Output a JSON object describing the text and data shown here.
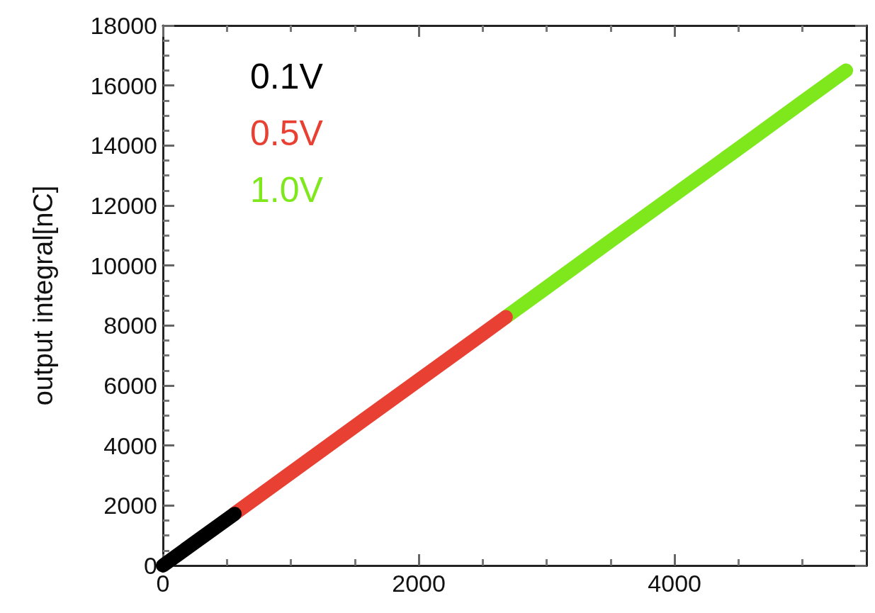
{
  "chart_data": {
    "type": "line",
    "ylabel": "output integral[nC]",
    "xlim": [
      0,
      5500
    ],
    "xticks": [
      0,
      2000,
      4000
    ],
    "ylim": [
      0,
      18000
    ],
    "yticks": [
      0,
      2000,
      4000,
      6000,
      8000,
      10000,
      12000,
      14000,
      16000,
      18000
    ],
    "grid": false,
    "legend": "top left",
    "marker": "none",
    "line_style": "solid",
    "series": [
      {
        "name": "1.0V",
        "color": "#7ee81c",
        "x": [
          2680,
          3000,
          3500,
          4000,
          4500,
          5000,
          5340
        ],
        "values": [
          8280,
          9270,
          10820,
          12360,
          13900,
          15450,
          16500
        ]
      },
      {
        "name": "0.5V",
        "color": "#e84033",
        "x": [
          560,
          1000,
          1500,
          2000,
          2500,
          2680
        ],
        "values": [
          1730,
          3090,
          4640,
          6180,
          7720,
          8280
        ]
      },
      {
        "name": "0.1V",
        "color": "#000000",
        "x": [
          0,
          250,
          560
        ],
        "values": [
          0,
          770,
          1720
        ]
      }
    ]
  }
}
